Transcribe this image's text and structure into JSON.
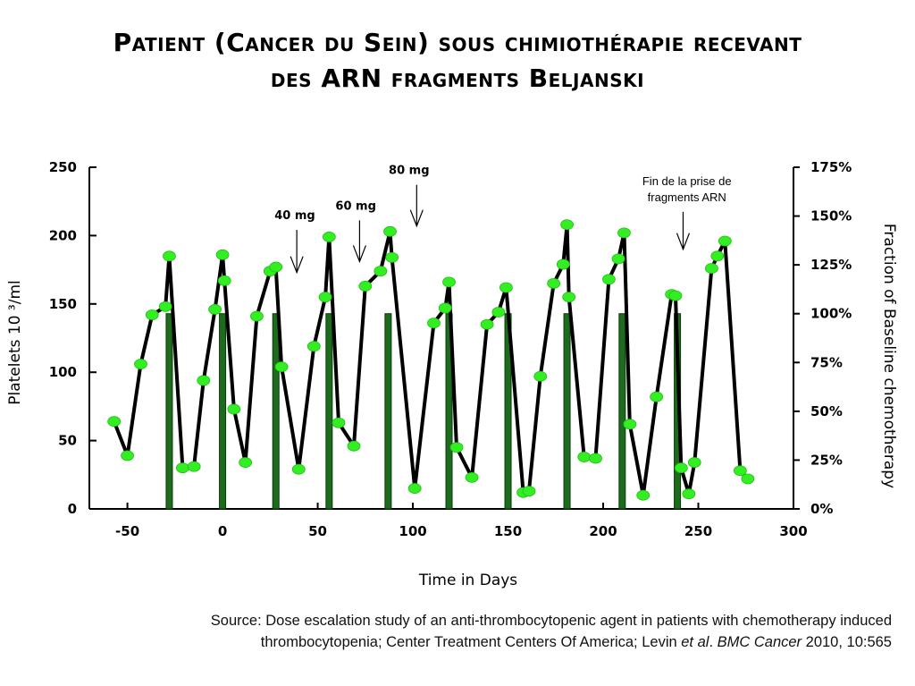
{
  "title_lines": [
    "Patient (Cancer du Sein) sous chimiothérapie recevant",
    "des ARN fragments Beljanski"
  ],
  "source": {
    "line1": "Source: Dose escalation study of  an anti-thrombocytopenic agent in patients with chemotherapy induced",
    "line2_a": "thrombocytopenia; Center Treatment Centers Of  America; Levin ",
    "line2_b": "et al",
    "line2_c": ". ",
    "line2_d": "BMC Cancer",
    "line2_e": " 2010, 10:565"
  },
  "colors": {
    "line": "#000000",
    "marker": "#33ee22",
    "bar": "#1d6b1d",
    "bar_edge": "#0a3a0a"
  },
  "chart_data": {
    "type": "line",
    "xlabel": "Time in Days",
    "ylabel": "Platelets 10 ³/ml",
    "y2label": "Fraction of Baseline chemotherapy",
    "xlim": [
      -70,
      300
    ],
    "ylim": [
      0,
      250
    ],
    "y2lim": [
      0,
      1.75
    ],
    "x_ticks": [
      "-50",
      "0",
      "50",
      "100",
      "150",
      "200",
      "250",
      "300"
    ],
    "y_ticks": [
      "0",
      "50",
      "100",
      "150",
      "200",
      "250"
    ],
    "y2_ticks": [
      "0%",
      "25%",
      "50%",
      "75%",
      "100%",
      "125%",
      "150%",
      "175%"
    ],
    "grid": false,
    "series": [
      {
        "x": [
          -57,
          -50,
          -43,
          -37,
          -30,
          -28,
          -21,
          -15,
          -10,
          -4,
          0,
          1,
          6,
          12,
          18,
          25,
          28,
          31,
          40,
          48,
          54,
          56,
          61,
          69,
          75,
          83,
          88,
          89,
          101,
          111,
          117,
          119,
          123,
          131,
          139,
          145,
          149,
          158,
          161,
          167,
          174,
          179,
          181,
          182,
          190,
          196,
          203,
          208,
          211,
          214,
          221,
          228,
          236,
          238,
          241,
          245,
          248,
          257,
          260,
          264,
          272,
          276
        ],
        "y": [
          64,
          39,
          106,
          142,
          148,
          185,
          30,
          31,
          94,
          146,
          186,
          167,
          73,
          34,
          141,
          174,
          177,
          104,
          29,
          119,
          155,
          199,
          63,
          46,
          163,
          174,
          203,
          184,
          15,
          136,
          147,
          166,
          45,
          23,
          135,
          144,
          162,
          12,
          13,
          97,
          165,
          179,
          208,
          155,
          38,
          37,
          168,
          183,
          202,
          62,
          10,
          82,
          157,
          156,
          30,
          11,
          34,
          176,
          185,
          196,
          28,
          22
        ]
      },
      {
        "name_shown": false,
        "type": "bar",
        "x": [
          -28,
          0,
          28,
          56,
          87,
          119,
          150,
          181,
          210,
          239
        ],
        "y2": [
          1.0,
          1.0,
          1.0,
          1.0,
          1.0,
          1.0,
          1.0,
          1.0,
          1.0,
          1.0
        ]
      }
    ],
    "annotations": [
      {
        "text": "40 mg",
        "x": 38,
        "y": 212,
        "arrow_to": [
          39,
          173
        ]
      },
      {
        "text": "60 mg",
        "x": 70,
        "y": 219,
        "arrow_to": [
          72,
          181
        ]
      },
      {
        "text": "80 mg",
        "x": 98,
        "y": 245,
        "arrow_to": [
          102,
          207
        ]
      },
      {
        "text": [
          "Fin de la prise de",
          "fragments ARN"
        ],
        "x": 244,
        "y": 237,
        "arrow_to": [
          242,
          190
        ]
      }
    ]
  }
}
